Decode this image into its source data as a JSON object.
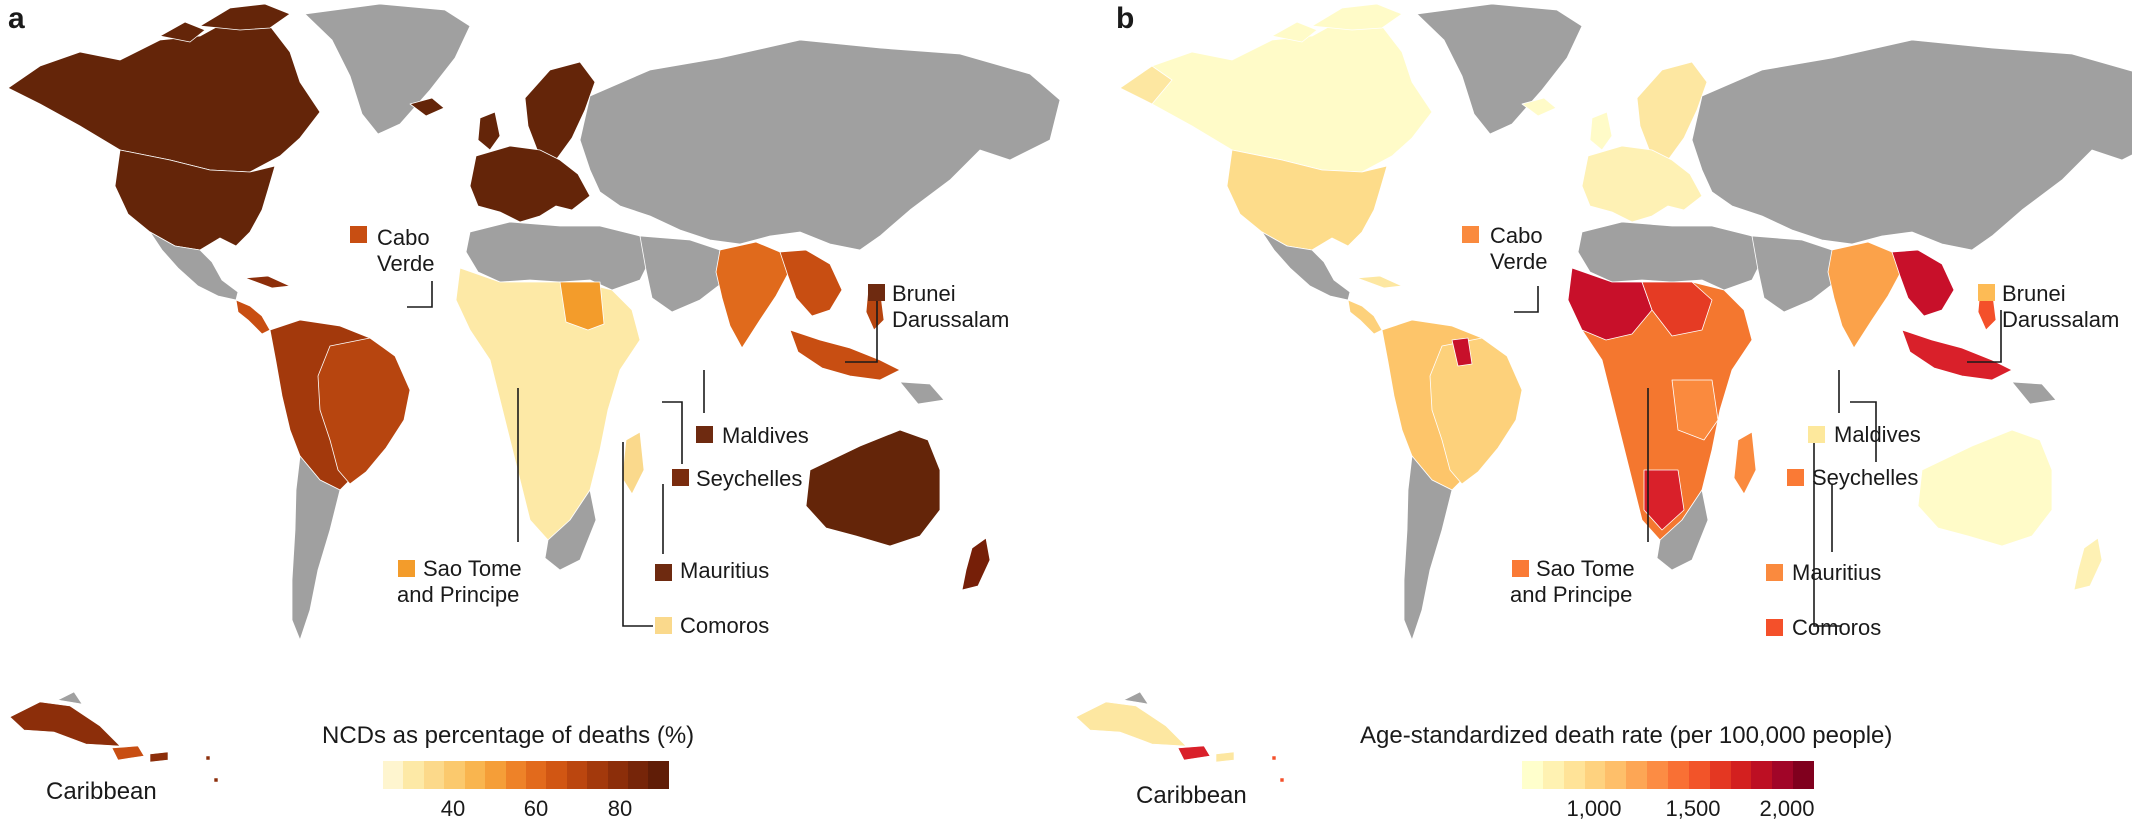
{
  "panel_a": {
    "letter": "a",
    "legend_title": "NCDs as percentage of deaths (%)",
    "ticks": [
      "40",
      "60",
      "80"
    ],
    "scale_colors": [
      "#fef5cf",
      "#fde9a6",
      "#fcd98a",
      "#fbc96d",
      "#f9b54f",
      "#f59e38",
      "#ee8228",
      "#e26a1c",
      "#d15613",
      "#bb460f",
      "#a3390c",
      "#8c2e0a",
      "#762509",
      "#601d07"
    ],
    "inset_label": "Caribbean",
    "callouts": [
      {
        "line1": "Cabo",
        "line2": "Verde",
        "color": "#c84e12"
      },
      {
        "line1": "Brunei",
        "line2": "Darussalam",
        "color": "#6e2a10"
      },
      {
        "line1": "Maldives",
        "line2": "",
        "color": "#6e2a10"
      },
      {
        "line1": "Seychelles",
        "line2": "",
        "color": "#7a2c0e"
      },
      {
        "line1": "Mauritius",
        "line2": "",
        "color": "#6e2a10"
      },
      {
        "line1": "Sao Tome",
        "line2": "and Principe",
        "color": "#f39c2b"
      },
      {
        "line1": "Comoros",
        "line2": "",
        "color": "#fad98c"
      }
    ]
  },
  "panel_b": {
    "letter": "b",
    "legend_title": "Age-standardized death rate (per 100,000 people)",
    "ticks": [
      "1,000",
      "1,500",
      "2,000"
    ],
    "scale_colors": [
      "#ffffcc",
      "#fff2b2",
      "#ffe398",
      "#fed27f",
      "#febf6a",
      "#fda655",
      "#fc8c44",
      "#f97034",
      "#f25429",
      "#e43722",
      "#d3201f",
      "#bd0f23",
      "#a10528",
      "#80001e"
    ],
    "inset_label": "Caribbean",
    "callouts": [
      {
        "line1": "Cabo",
        "line2": "Verde",
        "color": "#fa8a3e"
      },
      {
        "line1": "Brunei",
        "line2": "Darussalam",
        "color": "#fdbb55"
      },
      {
        "line1": "Maldives",
        "line2": "",
        "color": "#fde89c"
      },
      {
        "line1": "Seychelles",
        "line2": "",
        "color": "#fa7a35"
      },
      {
        "line1": "Mauritius",
        "line2": "",
        "color": "#fa8a3e"
      },
      {
        "line1": "Sao Tome",
        "line2": "and Principe",
        "color": "#fa7a35"
      },
      {
        "line1": "Comoros",
        "line2": "",
        "color": "#f4502a"
      }
    ]
  },
  "colors": {
    "no_data": "#a0a0a0",
    "border": "#ffffff",
    "ocean": "#ffffff"
  }
}
